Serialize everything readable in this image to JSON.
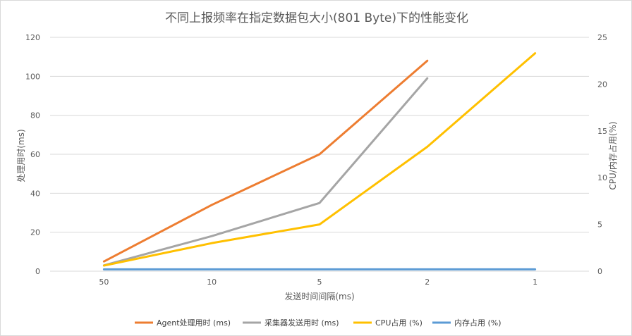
{
  "chart_data": {
    "type": "line",
    "title": "不同上报频率在指定数据包大小(801 Byte)下的性能变化",
    "xlabel": "发送时间间隔(ms)",
    "ylabel": "处理用时(ms)",
    "y2label": "CPU/内存占用(%)",
    "categories": [
      "50",
      "10",
      "5",
      "2",
      "1"
    ],
    "ylim": [
      0,
      120
    ],
    "yticks": [
      0,
      20,
      40,
      60,
      80,
      100,
      120
    ],
    "y2lim": [
      0,
      25
    ],
    "y2ticks": [
      0,
      5,
      10,
      15,
      20,
      25
    ],
    "grid": true,
    "legend_position": "bottom",
    "series": [
      {
        "name": "Agent处理用时 (ms)",
        "axis": "left",
        "color": "#ED7D31",
        "values": [
          5,
          34,
          60,
          108,
          null
        ]
      },
      {
        "name": "采集器发送用时 (ms)",
        "axis": "left",
        "color": "#A5A5A5",
        "values": [
          3,
          18,
          35,
          99,
          null
        ]
      },
      {
        "name": "CPU占用 (%)",
        "axis": "right",
        "color": "#FFC000",
        "values": [
          0.6,
          3,
          5,
          13.3,
          23.3
        ]
      },
      {
        "name": "内存占用 (%)",
        "axis": "right",
        "color": "#5B9BD5",
        "values": [
          0.2,
          0.2,
          0.2,
          0.2,
          0.2
        ]
      }
    ]
  }
}
